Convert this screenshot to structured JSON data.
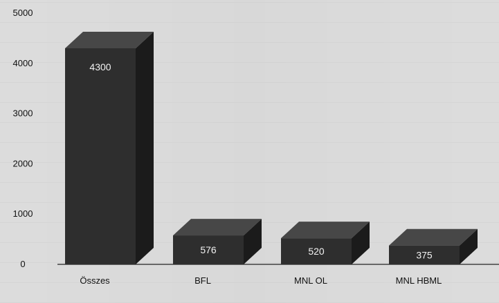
{
  "chart_data": {
    "type": "bar",
    "categories": [
      "Összes",
      "BFL",
      "MNL OL",
      "MNL HBML"
    ],
    "values": [
      4300,
      576,
      520,
      375
    ],
    "data_labels": [
      "4300",
      "576",
      "520",
      "375"
    ],
    "ylim": [
      0,
      5000
    ],
    "yticks": [
      0,
      1000,
      2000,
      3000,
      4000,
      5000
    ],
    "ytick_labels": [
      "0",
      "1000",
      "2000",
      "3000",
      "4000",
      "5000"
    ],
    "title": "",
    "xlabel": "",
    "ylabel": "",
    "style": "3d",
    "grid": false,
    "colors": {
      "front": "#2e2e2e",
      "top": "#474747",
      "side": "#1b1b1b",
      "label": "#f2f2f2",
      "text": "#111111"
    }
  }
}
